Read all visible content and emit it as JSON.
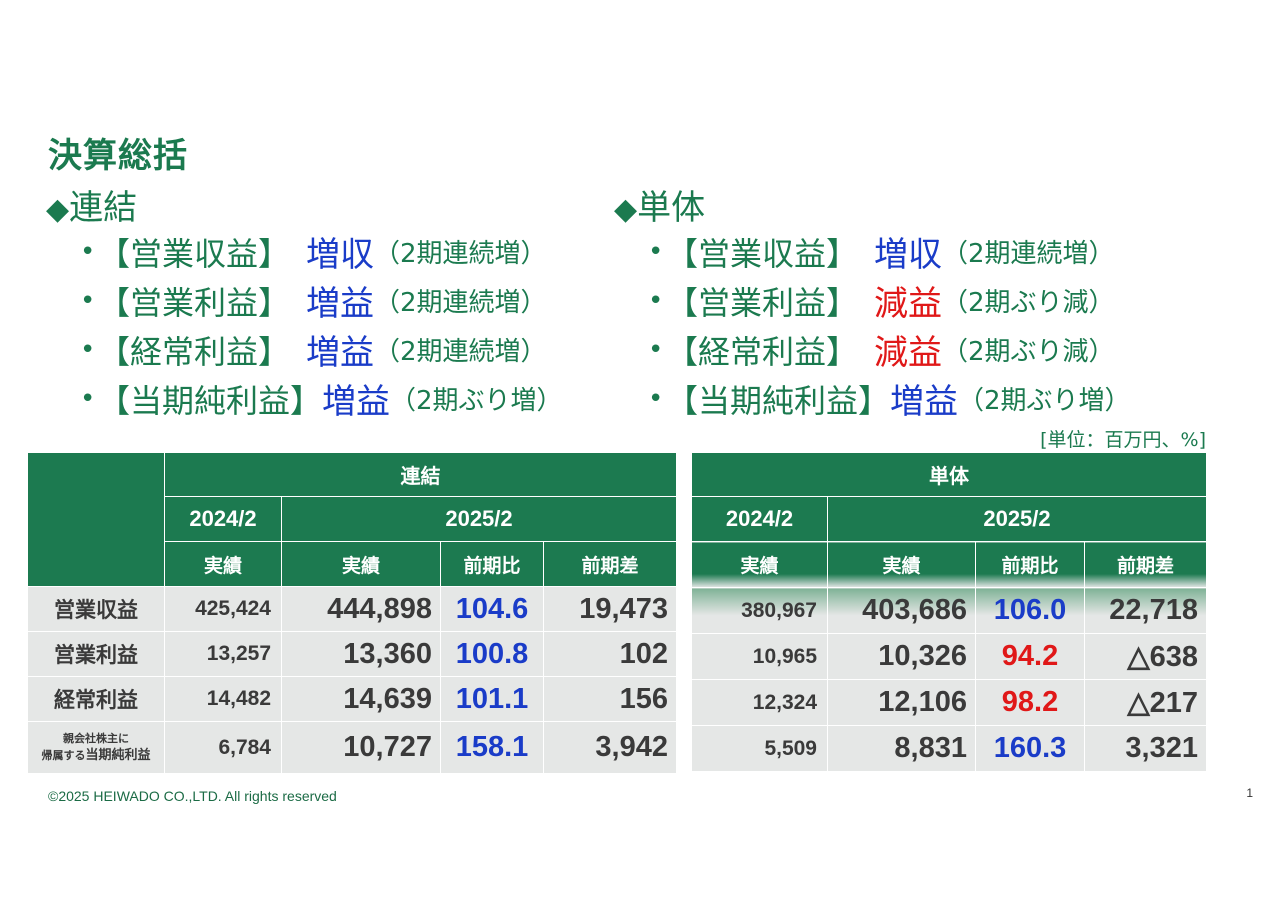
{
  "title": "決算総括",
  "sections": {
    "left": {
      "heading": "連結",
      "items": [
        {
          "label": "【営業収益】　",
          "result": "増収",
          "note": "（2期連続増）"
        },
        {
          "label": "【営業利益】　",
          "result": "増益",
          "note": "（2期連続増）"
        },
        {
          "label": "【経常利益】　",
          "result": "増益",
          "note": "（2期連続増）"
        },
        {
          "label": "【当期純利益】",
          "result": "増益",
          "note": "（2期ぶり増）"
        }
      ]
    },
    "right": {
      "heading": "単体",
      "items": [
        {
          "label": "【営業収益】　",
          "result": "増収",
          "note": "（2期連続増）"
        },
        {
          "label": "【営業利益】　",
          "result": "減益",
          "note": "（2期ぶり減）"
        },
        {
          "label": "【経常利益】　",
          "result": "減益",
          "note": "（2期ぶり減）"
        },
        {
          "label": "【当期純利益】",
          "result": "増益",
          "note": "（2期ぶり増）"
        }
      ]
    }
  },
  "unit": "[単位：百万円、%]",
  "consolidated_table": {
    "group": "連結",
    "year_prev": "2024/2",
    "year_cur": "2025/2",
    "col_actual": "実績",
    "col_actual_cur": "実績",
    "col_ratio": "前期比",
    "col_diff": "前期差",
    "rows": [
      {
        "label": "営業収益",
        "prev": "425,424",
        "cur": "444,898",
        "ratio": "104.6",
        "diff": "19,473"
      },
      {
        "label": "営業利益",
        "prev": "13,257",
        "cur": "13,360",
        "ratio": "100.8",
        "diff": "102"
      },
      {
        "label": "経常利益",
        "prev": "14,482",
        "cur": "14,639",
        "ratio": "101.1",
        "diff": "156"
      },
      {
        "label_line1": "親会社株主に",
        "label_line2a": "帰属する",
        "label_line2b": "当期純利益",
        "prev": "6,784",
        "cur": "10,727",
        "ratio": "158.1",
        "diff": "3,942"
      }
    ]
  },
  "standalone_table": {
    "group": "単体",
    "year_prev": "2024/2",
    "year_cur": "2025/2",
    "col_actual": "実績",
    "col_actual_cur": "実績",
    "col_ratio": "前期比",
    "col_diff": "前期差",
    "rows": [
      {
        "prev": "380,967",
        "cur": "403,686",
        "ratio": "106.0",
        "diff": "22,718"
      },
      {
        "prev": "10,965",
        "cur": "10,326",
        "ratio": "94.2",
        "diff": "△638"
      },
      {
        "prev": "12,324",
        "cur": "12,106",
        "ratio": "98.2",
        "diff": "△217"
      },
      {
        "prev": "5,509",
        "cur": "8,831",
        "ratio": "160.3",
        "diff": "3,321"
      }
    ]
  },
  "colors": {
    "green": "#1c7a50",
    "increase": "#1a3cc8",
    "decrease": "#e01818"
  },
  "footer": "©2025  HEIWADO CO.,LTD.  All rights reserved",
  "page_number": "1"
}
